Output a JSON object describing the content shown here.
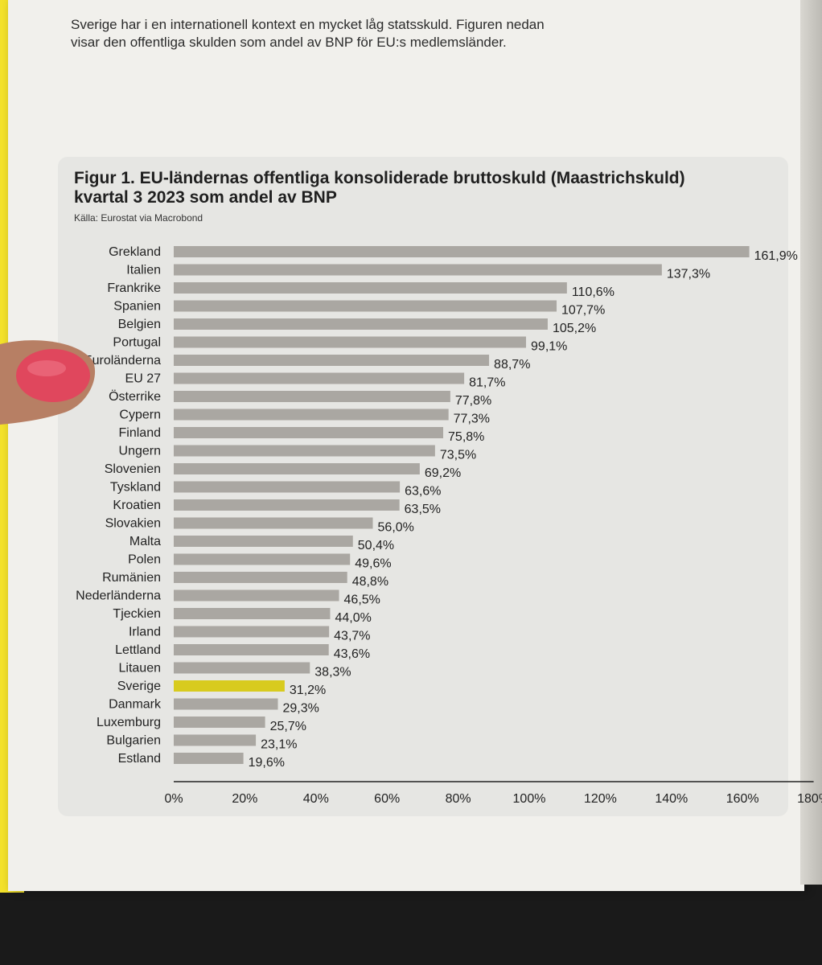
{
  "intro": {
    "line1": "Sverige har i en internationell kontext en mycket låg statsskuld. Figuren nedan",
    "line2": "visar den offentliga skulden som andel av BNP för EU:s medlemsländer."
  },
  "chart_data": {
    "type": "bar",
    "orientation": "horizontal",
    "title_line1": "Figur 1. EU-ländernas offentliga konsoliderade bruttoskuld (Maastrichskuld)",
    "title_line2": "kvartal 3 2023 som andel av BNP",
    "source": "Källa: Eurostat via Macrobond",
    "categories": [
      "Grekland",
      "Italien",
      "Frankrike",
      "Spanien",
      "Belgien",
      "Portugal",
      "Euroländerna",
      "EU 27",
      "Österrike",
      "Cypern",
      "Finland",
      "Ungern",
      "Slovenien",
      "Tyskland",
      "Kroatien",
      "Slovakien",
      "Malta",
      "Polen",
      "Rumänien",
      "Nederländerna",
      "Tjeckien",
      "Irland",
      "Lettland",
      "Litauen",
      "Sverige",
      "Danmark",
      "Luxemburg",
      "Bulgarien",
      "Estland"
    ],
    "values": [
      161.9,
      137.3,
      110.6,
      107.7,
      105.2,
      99.1,
      88.7,
      81.7,
      77.8,
      77.3,
      75.8,
      73.5,
      69.2,
      63.6,
      63.5,
      56.0,
      50.4,
      49.6,
      48.8,
      46.5,
      44.0,
      43.7,
      43.6,
      38.3,
      31.2,
      29.3,
      25.7,
      23.1,
      19.6
    ],
    "value_labels": [
      "161,9%",
      "137,3%",
      "110,6%",
      "107,7%",
      "105,2%",
      "99,1%",
      "88,7%",
      "81,7%",
      "77,8%",
      "77,3%",
      "75,8%",
      "73,5%",
      "69,2%",
      "63,6%",
      "63,5%",
      "56,0%",
      "50,4%",
      "49,6%",
      "48,8%",
      "46,5%",
      "44,0%",
      "43,7%",
      "43,6%",
      "38,3%",
      "31,2%",
      "29,3%",
      "25,7%",
      "23,1%",
      "19,6%"
    ],
    "highlight": "Sverige",
    "xlim": [
      0,
      180
    ],
    "xticks": [
      0,
      20,
      40,
      60,
      80,
      100,
      120,
      140,
      160,
      180
    ],
    "xtick_labels": [
      "0%",
      "20%",
      "40%",
      "60%",
      "80%",
      "100%",
      "120%",
      "140%",
      "160%",
      "180%"
    ],
    "colors": {
      "bar": "#aaa7a2",
      "highlight": "#d8cb1e",
      "text": "#222222"
    },
    "grid": false
  }
}
